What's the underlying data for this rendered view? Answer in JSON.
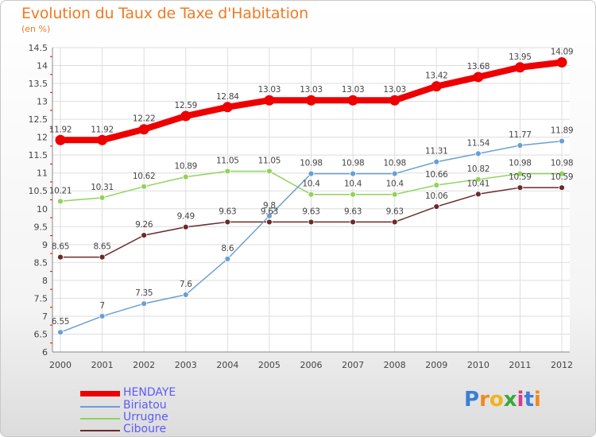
{
  "header": {
    "title": "Evolution du Taux de Taxe d'Habitation",
    "unit": "(en %)"
  },
  "logo": {
    "text": "Proxiti",
    "letters": [
      "P",
      "r",
      "o",
      "x",
      "i",
      "t",
      "i"
    ],
    "colors": [
      "#3a7fd5",
      "#f08a1c",
      "#f0b41c",
      "#3aa83a",
      "#d93a8a",
      "#3a7fd5",
      "#f08a1c"
    ]
  },
  "chart_data": {
    "type": "line",
    "x": [
      "2000",
      "2001",
      "2002",
      "2003",
      "2004",
      "2005",
      "2006",
      "2007",
      "2008",
      "2009",
      "2010",
      "2011",
      "2012"
    ],
    "ylim": [
      6,
      14.5
    ],
    "yticks": [
      "6",
      "6.5",
      "7",
      "7.5",
      "8",
      "8.5",
      "9",
      "9.5",
      "10",
      "10.5",
      "11",
      "11.5",
      "12",
      "12.5",
      "13",
      "13.5",
      "14",
      "14.5"
    ],
    "grid": true,
    "legend_position": "bottom-left",
    "series": [
      {
        "name": "HENDAYE",
        "color": "#ee0000",
        "values": [
          11.92,
          11.92,
          12.22,
          12.59,
          12.84,
          13.03,
          13.03,
          13.03,
          13.03,
          13.42,
          13.68,
          13.95,
          14.09
        ],
        "labels": [
          "11.92",
          "11.92",
          "12.22",
          "12.59",
          "12.84",
          "13.03",
          "13.03",
          "13.03",
          "13.03",
          "13.42",
          "13.68",
          "13.95",
          "14.09"
        ]
      },
      {
        "name": "Biriatou",
        "color": "#6a9fd4",
        "values": [
          6.55,
          7,
          7.35,
          7.6,
          8.6,
          9.8,
          10.98,
          10.98,
          10.98,
          11.31,
          11.54,
          11.77,
          11.89
        ],
        "labels": [
          "6.55",
          "7",
          "7.35",
          "7.6",
          "8.6",
          "9.8",
          "10.98",
          "10.98",
          "10.98",
          "11.31",
          "11.54",
          "11.77",
          "11.89"
        ]
      },
      {
        "name": "Urrugne",
        "color": "#8ed45a",
        "values": [
          10.21,
          10.31,
          10.62,
          10.89,
          11.05,
          11.05,
          10.4,
          10.4,
          10.4,
          10.66,
          10.82,
          10.98,
          10.98
        ],
        "labels": [
          "10.21",
          "10.31",
          "10.62",
          "10.89",
          "11.05",
          "11.05",
          "10.4",
          "10.4",
          "10.4",
          "10.66",
          "10.82",
          "10.98",
          "10.98"
        ]
      },
      {
        "name": "Ciboure",
        "color": "#6b2a2a",
        "values": [
          8.65,
          8.65,
          9.26,
          9.49,
          9.63,
          9.63,
          9.63,
          9.63,
          9.63,
          10.06,
          10.41,
          10.59,
          10.59
        ],
        "labels": [
          "8.65",
          "8.65",
          "9.26",
          "9.49",
          "9.63",
          "9.63",
          "9.63",
          "9.63",
          "9.63",
          "10.06",
          "10.41",
          "10.59",
          "10.59"
        ]
      }
    ]
  }
}
